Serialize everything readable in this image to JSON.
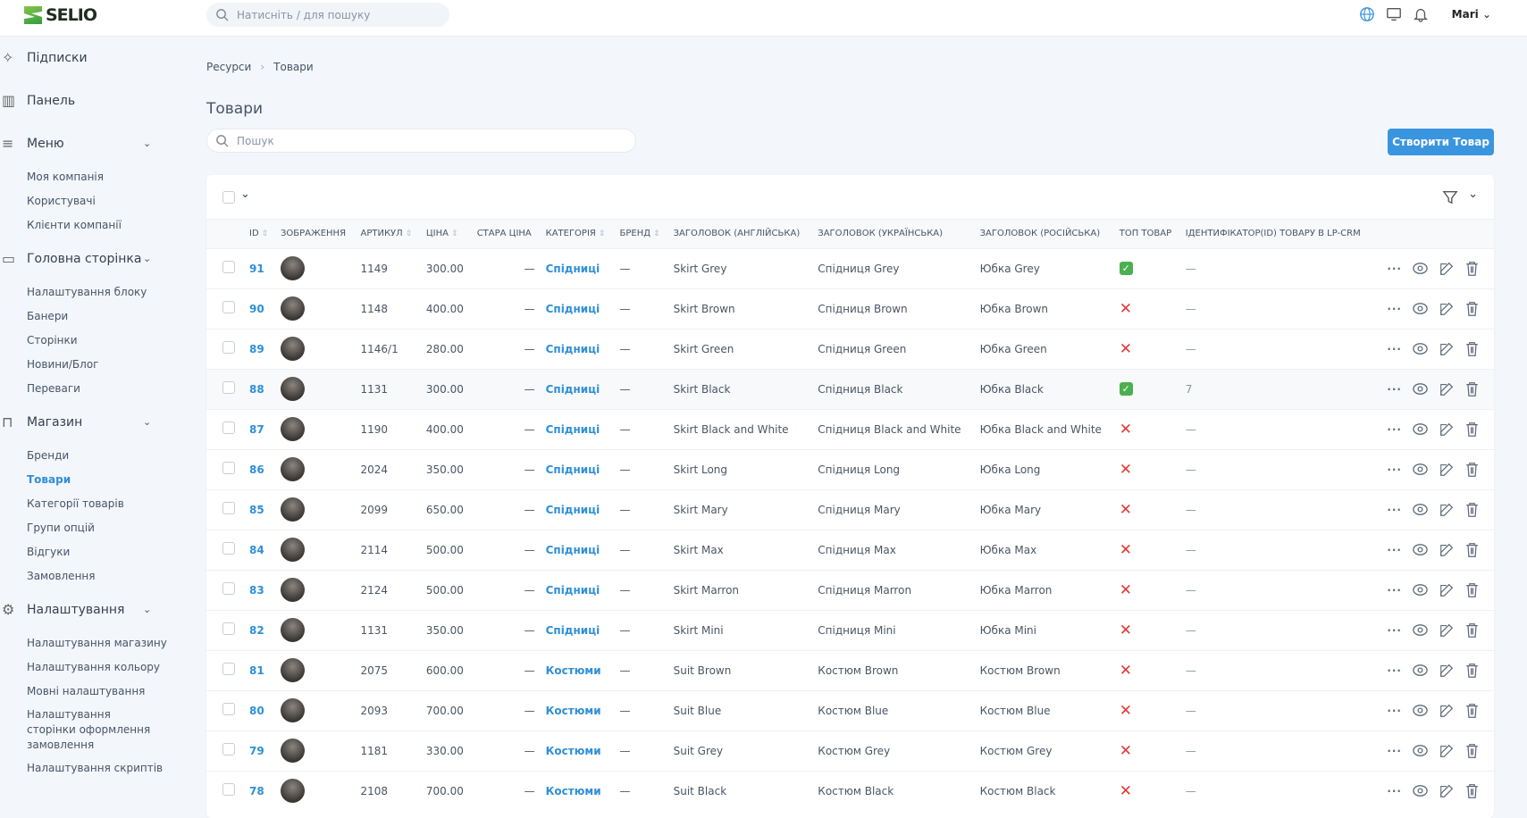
{
  "header": {
    "brand": "SELIO",
    "search_placeholder": "Натисніть / для пошуку",
    "user": "Mari"
  },
  "sidebar": {
    "groups": [
      {
        "label": "Підписки",
        "icon": "sparkles-icon",
        "items": []
      },
      {
        "label": "Панель",
        "icon": "bar-chart-icon",
        "items": []
      },
      {
        "label": "Меню",
        "icon": "menu-icon",
        "items": [
          "Моя компанія",
          "Користувачі",
          "Клієнти компанії"
        ]
      },
      {
        "label": "Головна сторінка",
        "icon": "layout-icon",
        "items": [
          "Налаштування блоку",
          "Банери",
          "Сторінки",
          "Новини/Блог",
          "Переваги"
        ]
      },
      {
        "label": "Магазин",
        "icon": "bag-icon",
        "items": [
          "Бренди",
          "Товари",
          "Категорії товарів",
          "Групи опцій",
          "Відгуки",
          "Замовлення"
        ]
      },
      {
        "label": "Налаштування",
        "icon": "gear-icon",
        "items": [
          "Налаштування магазину",
          "Налаштування кольору",
          "Мовні налаштування",
          "Налаштування сторінки оформлення замовлення",
          "Налаштування скриптів"
        ]
      }
    ],
    "active_item": "Товари"
  },
  "breadcrumb": [
    "Ресурси",
    "Товари"
  ],
  "page": {
    "title": "Товари",
    "search_placeholder": "Пошук",
    "create_label": "Створити Товар"
  },
  "table": {
    "columns": [
      "ID",
      "ЗОБРАЖЕННЯ",
      "АРТИКУЛ",
      "ЦІНА",
      "СТАРА ЦІНА",
      "КАТЕГОРІЯ",
      "БРЕНД",
      "ЗАГОЛОВОК (АНГЛІЙСЬКА)",
      "ЗАГОЛОВОК (УКРАЇНСЬКА)",
      "ЗАГОЛОВОК (РОСІЙСЬКА)",
      "ТОП ТОВАР",
      "ІДЕНТИФІКАТОР(ID) ТОВАРУ В LP-CRM"
    ],
    "rows": [
      {
        "id": "91",
        "sku": "1149",
        "price": "300.00",
        "old": "—",
        "cat": "Спідниці",
        "brand": "—",
        "en": "Skirt Grey",
        "uk": "Спідниця Grey",
        "ru": "Юбка Grey",
        "top": true,
        "crm": "—"
      },
      {
        "id": "90",
        "sku": "1148",
        "price": "400.00",
        "old": "—",
        "cat": "Спідниці",
        "brand": "—",
        "en": "Skirt Brown",
        "uk": "Спідниця Brown",
        "ru": "Юбка Brown",
        "top": false,
        "crm": "—"
      },
      {
        "id": "89",
        "sku": "1146/1",
        "price": "280.00",
        "old": "—",
        "cat": "Спідниці",
        "brand": "—",
        "en": "Skirt Green",
        "uk": "Спідниця Green",
        "ru": "Юбка Green",
        "top": false,
        "crm": "—"
      },
      {
        "id": "88",
        "sku": "1131",
        "price": "300.00",
        "old": "—",
        "cat": "Спідниці",
        "brand": "—",
        "en": "Skirt Black",
        "uk": "Спідниця Black",
        "ru": "Юбка Black",
        "top": true,
        "crm": "7"
      },
      {
        "id": "87",
        "sku": "1190",
        "price": "400.00",
        "old": "—",
        "cat": "Спідниці",
        "brand": "—",
        "en": "Skirt Black and White",
        "uk": "Спідниця Black and White",
        "ru": "Юбка Black and White",
        "top": false,
        "crm": "—"
      },
      {
        "id": "86",
        "sku": "2024",
        "price": "350.00",
        "old": "—",
        "cat": "Спідниці",
        "brand": "—",
        "en": "Skirt Long",
        "uk": "Спідниця Long",
        "ru": "Юбка Long",
        "top": false,
        "crm": "—"
      },
      {
        "id": "85",
        "sku": "2099",
        "price": "650.00",
        "old": "—",
        "cat": "Спідниці",
        "brand": "—",
        "en": "Skirt Mary",
        "uk": "Спідниця Mary",
        "ru": "Юбка Mary",
        "top": false,
        "crm": "—"
      },
      {
        "id": "84",
        "sku": "2114",
        "price": "500.00",
        "old": "—",
        "cat": "Спідниці",
        "brand": "—",
        "en": "Skirt Max",
        "uk": "Спідниця Max",
        "ru": "Юбка Max",
        "top": false,
        "crm": "—"
      },
      {
        "id": "83",
        "sku": "2124",
        "price": "500.00",
        "old": "—",
        "cat": "Спідниці",
        "brand": "—",
        "en": "Skirt Marron",
        "uk": "Спідниця Marron",
        "ru": "Юбка Marron",
        "top": false,
        "crm": "—"
      },
      {
        "id": "82",
        "sku": "1131",
        "price": "350.00",
        "old": "—",
        "cat": "Спідниці",
        "brand": "—",
        "en": "Skirt Mini",
        "uk": "Спідниця Mini",
        "ru": "Юбка Mini",
        "top": false,
        "crm": "—"
      },
      {
        "id": "81",
        "sku": "2075",
        "price": "600.00",
        "old": "—",
        "cat": "Костюми",
        "brand": "—",
        "en": "Suit Brown",
        "uk": "Костюм Brown",
        "ru": "Костюм Brown",
        "top": false,
        "crm": "—"
      },
      {
        "id": "80",
        "sku": "2093",
        "price": "700.00",
        "old": "—",
        "cat": "Костюми",
        "brand": "—",
        "en": "Suit Blue",
        "uk": "Костюм Blue",
        "ru": "Костюм Blue",
        "top": false,
        "crm": "—"
      },
      {
        "id": "79",
        "sku": "1181",
        "price": "330.00",
        "old": "—",
        "cat": "Костюми",
        "brand": "—",
        "en": "Suit Grey",
        "uk": "Костюм Grey",
        "ru": "Костюм Grey",
        "top": false,
        "crm": "—"
      },
      {
        "id": "78",
        "sku": "2108",
        "price": "700.00",
        "old": "—",
        "cat": "Костюми",
        "brand": "—",
        "en": "Suit Black",
        "uk": "Костюм Black",
        "ru": "Костюм Black",
        "top": false,
        "crm": "—"
      }
    ]
  },
  "colors": {
    "accent": "#3a95df",
    "link": "#2f8fd8",
    "yes": "#4caf50",
    "no": "#e53935"
  }
}
